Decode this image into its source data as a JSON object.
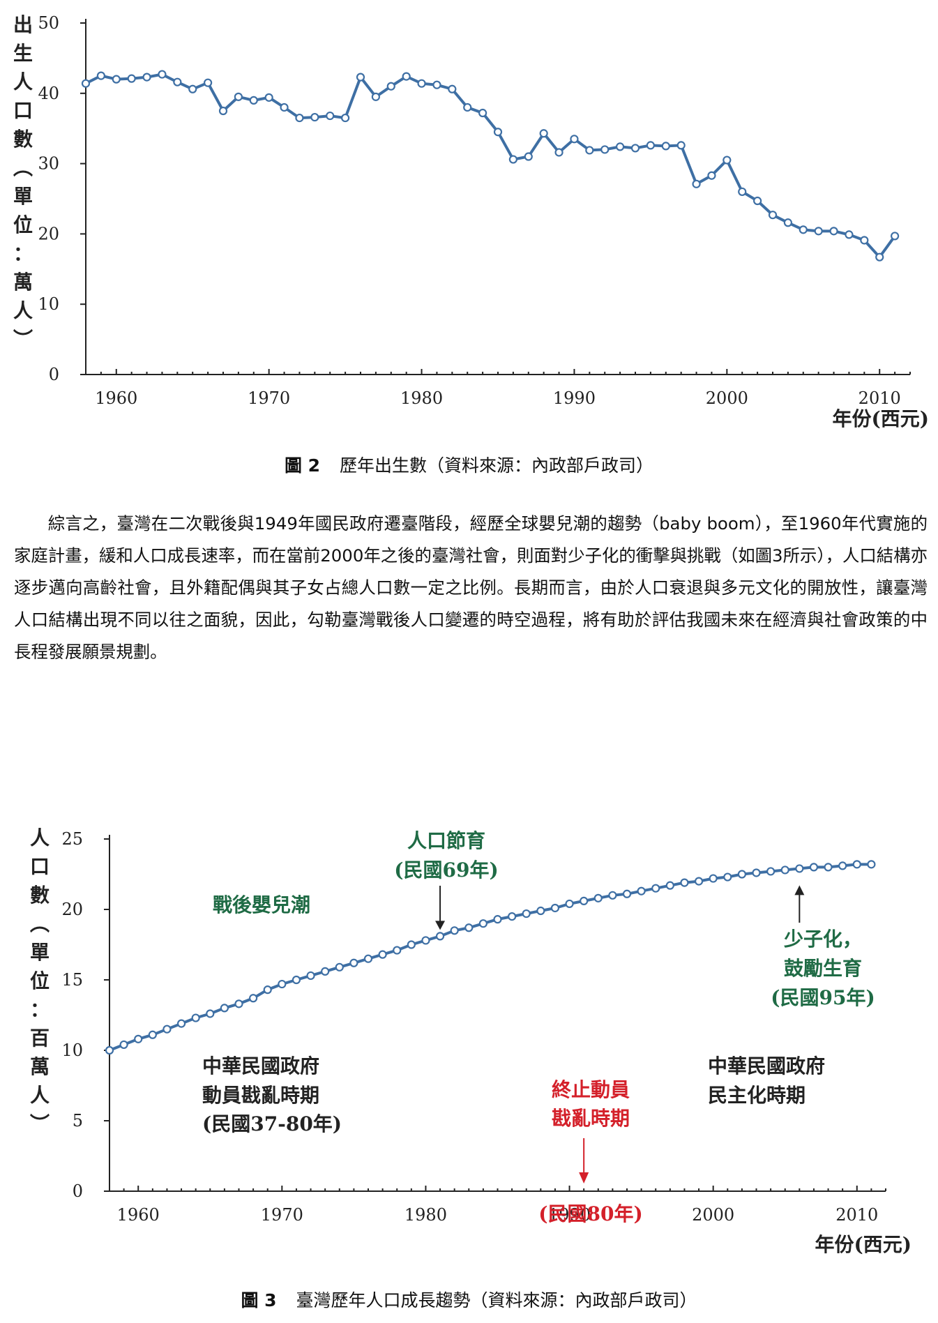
{
  "chart_data": [
    {
      "type": "line",
      "ylabel": "出生人口數（單位：萬人）",
      "xlabel": "年份(西元)",
      "ylim": [
        0,
        50
      ],
      "yticks": [
        0,
        10,
        20,
        30,
        40,
        50
      ],
      "xticks": [
        1960,
        1970,
        1980,
        1990,
        2000,
        2010
      ],
      "xlim": [
        1958,
        2012
      ],
      "x": [
        1958,
        1959,
        1960,
        1961,
        1962,
        1963,
        1964,
        1965,
        1966,
        1967,
        1968,
        1969,
        1970,
        1971,
        1972,
        1973,
        1974,
        1975,
        1976,
        1977,
        1978,
        1979,
        1980,
        1981,
        1982,
        1983,
        1984,
        1985,
        1986,
        1987,
        1988,
        1989,
        1990,
        1991,
        1992,
        1993,
        1994,
        1995,
        1996,
        1997,
        1998,
        1999,
        2000,
        2001,
        2002,
        2003,
        2004,
        2005,
        2006,
        2007,
        2008,
        2009,
        2010,
        2011
      ],
      "values": [
        41.4,
        42.5,
        42.0,
        42.1,
        42.3,
        42.7,
        41.6,
        40.6,
        41.5,
        37.5,
        39.5,
        39.0,
        39.4,
        38.0,
        36.5,
        36.6,
        36.8,
        36.5,
        42.3,
        39.5,
        41.0,
        42.4,
        41.4,
        41.2,
        40.6,
        38.0,
        37.2,
        34.5,
        30.6,
        31.0,
        34.3,
        31.6,
        33.5,
        31.9,
        32.0,
        32.4,
        32.2,
        32.6,
        32.5,
        32.6,
        27.1,
        28.3,
        30.5,
        26.0,
        24.7,
        22.7,
        21.6,
        20.6,
        20.4,
        20.4,
        19.9,
        19.1,
        16.7,
        19.7
      ]
    },
    {
      "type": "line",
      "ylabel": "人口數（單位：百萬人）",
      "xlabel": "年份(西元)",
      "ylim": [
        0,
        25
      ],
      "yticks": [
        0,
        5,
        10,
        15,
        20,
        25
      ],
      "xticks": [
        1960,
        1970,
        1980,
        1990,
        2000,
        2010
      ],
      "xlim": [
        1958,
        2012
      ],
      "x": [
        1958,
        1959,
        1960,
        1961,
        1962,
        1963,
        1964,
        1965,
        1966,
        1967,
        1968,
        1969,
        1970,
        1971,
        1972,
        1973,
        1974,
        1975,
        1976,
        1977,
        1978,
        1979,
        1980,
        1981,
        1982,
        1983,
        1984,
        1985,
        1986,
        1987,
        1988,
        1989,
        1990,
        1991,
        1992,
        1993,
        1994,
        1995,
        1996,
        1997,
        1998,
        1999,
        2000,
        2001,
        2002,
        2003,
        2004,
        2005,
        2006,
        2007,
        2008,
        2009,
        2010,
        2011
      ],
      "values": [
        10.0,
        10.4,
        10.8,
        11.1,
        11.5,
        11.9,
        12.3,
        12.6,
        13.0,
        13.3,
        13.7,
        14.3,
        14.7,
        15.0,
        15.3,
        15.6,
        15.9,
        16.2,
        16.5,
        16.8,
        17.1,
        17.5,
        17.8,
        18.1,
        18.5,
        18.7,
        19.0,
        19.3,
        19.5,
        19.7,
        19.9,
        20.1,
        20.4,
        20.6,
        20.8,
        21.0,
        21.1,
        21.3,
        21.5,
        21.7,
        21.9,
        22.0,
        22.2,
        22.3,
        22.5,
        22.6,
        22.7,
        22.8,
        22.9,
        23.0,
        23.0,
        23.1,
        23.2,
        23.2
      ],
      "annotations": {
        "baby_boom": "戰後嬰兒潮",
        "family_planning_line1": "人口節育",
        "family_planning_line2": "(民國69年)",
        "low_birth_line1": "少子化，",
        "low_birth_line2": "鼓勵生育",
        "low_birth_line3": "(民國95年)",
        "era1_line1": "中華民國政府",
        "era1_line2": "動員戡亂時期",
        "era1_line3": "(民國37-80年)",
        "era2_line1": "中華民國政府",
        "era2_line2": "民主化時期",
        "end_line1": "終止動員",
        "end_line2": "戡亂時期",
        "end_line3": "(民國80年)"
      }
    }
  ],
  "figure2": {
    "ylabel_chars": [
      "出",
      "生",
      "人",
      "口",
      "數",
      "︵",
      "單",
      "位",
      "：",
      "萬",
      "人",
      "︶"
    ],
    "xlabel": "年份(西元)",
    "caption_num": "圖 2",
    "caption_text": "歷年出生數（資料來源：內政部戶政司）"
  },
  "figure3": {
    "ylabel_chars": [
      "人",
      "口",
      "數",
      "︵",
      "單",
      "位",
      "：",
      "百",
      "萬",
      "人",
      "︶"
    ],
    "xlabel": "年份(西元)",
    "caption_num": "圖 3",
    "caption_text": "臺灣歷年人口成長趨勢（資料來源：內政部戶政司）"
  },
  "body_text": "綜言之，臺灣在二次戰後與1949年國民政府遷臺階段，經歷全球嬰兒潮的趨勢（baby boom），至1960年代實施的家庭計畫，緩和人口成長速率，而在當前2000年之後的臺灣社會，則面對少子化的衝擊與挑戰（如圖3所示），人口結構亦逐步邁向高齡社會，且外籍配偶與其子女占總人口數一定之比例。長期而言，由於人口衰退與多元文化的開放性，讓臺灣人口結構出現不同以往之面貌，因此，勾勒臺灣戰後人口變遷的時空過程，將有助於評估我國未來在經濟與社會政策的中長程發展願景規劃。",
  "colors": {
    "series": "#3e6fa4",
    "green": "#1f6b45",
    "red": "#d4202a"
  }
}
